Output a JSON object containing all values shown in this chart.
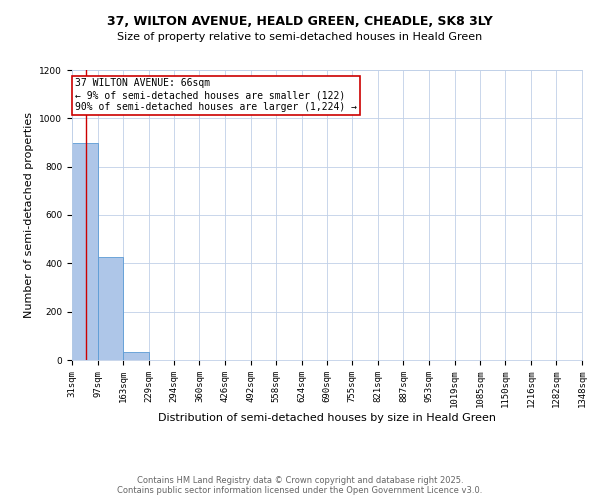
{
  "title": "37, WILTON AVENUE, HEALD GREEN, CHEADLE, SK8 3LY",
  "subtitle": "Size of property relative to semi-detached houses in Heald Green",
  "xlabel": "Distribution of semi-detached houses by size in Heald Green",
  "ylabel": "Number of semi-detached properties",
  "bin_edges": [
    31,
    97,
    163,
    229,
    294,
    360,
    426,
    492,
    558,
    624,
    690,
    755,
    821,
    887,
    953,
    1019,
    1085,
    1150,
    1216,
    1282,
    1348
  ],
  "bar_heights": [
    900,
    425,
    35,
    0,
    0,
    0,
    0,
    0,
    0,
    0,
    0,
    0,
    0,
    0,
    0,
    0,
    0,
    0,
    0,
    0
  ],
  "bar_color": "#aec6e8",
  "bar_edge_color": "#5b9bd5",
  "red_line_x": 66,
  "annotation_title": "37 WILTON AVENUE: 66sqm",
  "annotation_line2": "← 9% of semi-detached houses are smaller (122)",
  "annotation_line3": "90% of semi-detached houses are larger (1,224) →",
  "annotation_box_color": "#ffffff",
  "annotation_border_color": "#cc0000",
  "red_line_color": "#cc0000",
  "ylim": [
    0,
    1200
  ],
  "yticks": [
    0,
    200,
    400,
    600,
    800,
    1000,
    1200
  ],
  "background_color": "#ffffff",
  "grid_color": "#c0d0e8",
  "footer_line1": "Contains HM Land Registry data © Crown copyright and database right 2025.",
  "footer_line2": "Contains public sector information licensed under the Open Government Licence v3.0.",
  "title_fontsize": 9,
  "subtitle_fontsize": 8,
  "axis_label_fontsize": 8,
  "tick_fontsize": 6.5,
  "annotation_fontsize": 7,
  "footer_fontsize": 6
}
